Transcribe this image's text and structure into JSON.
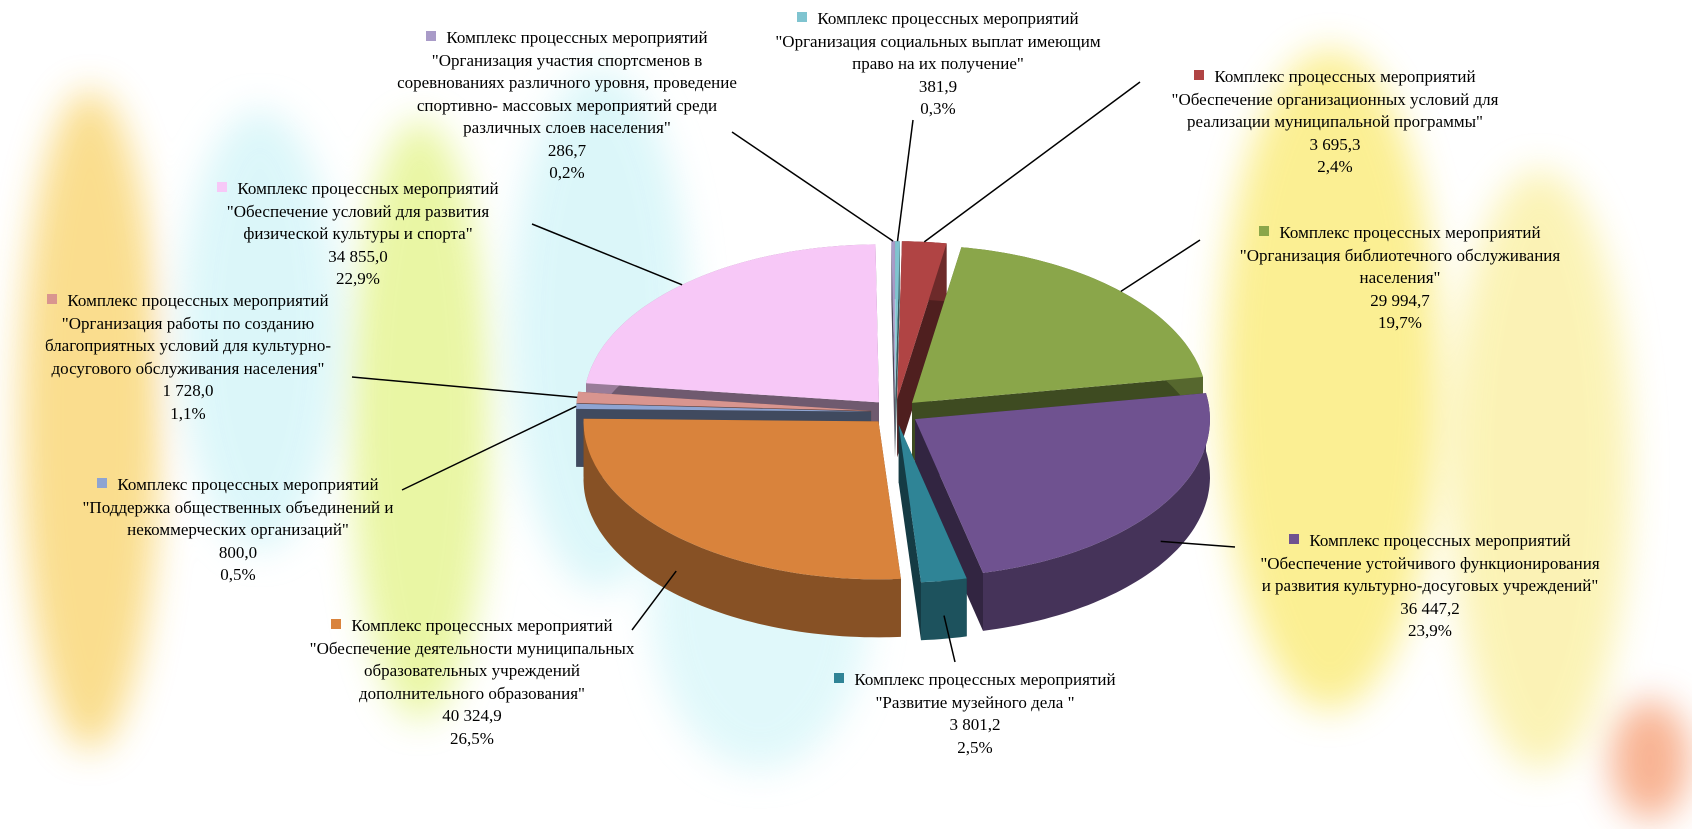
{
  "chart_data": {
    "type": "pie",
    "categories": [
      "Комплекс процессных мероприятий \"Организация социальных выплат имеющим право на их получение\"",
      "Комплекс процессных мероприятий \"Обеспечение организационных условий для реализации муниципальной программы\"",
      "Комплекс процессных мероприятий \"Организация библиотечного обслуживания населения\"",
      "Комплекс процессных мероприятий \"Обеспечение устойчивого функционирования и развития культурно-досуговых учреждений\"",
      "Комплекс процессных мероприятий \"Развитие музейного дела \"",
      "Комплекс процессных мероприятий \"Обеспечение деятельности муниципальных образовательных учреждений дополнительного образования\"",
      "Комплекс процессных мероприятий \"Поддержка общественных объединений и некоммерческих организаций\"",
      "Комплекс процессных мероприятий \"Организация работы по созданию благоприятных условий для культурно-досугового обслуживания населения\"",
      "Комплекс процессных мероприятий \"Обеспечение условий для развития физической культуры и спорта\"",
      "Комплекс процессных мероприятий \"Организация участия спортсменов в соревнованиях различного уровня, проведение спортивно- массовых мероприятий среди различных слоев населения\""
    ],
    "values": [
      381.9,
      3695.3,
      29994.7,
      36447.2,
      3801.2,
      40324.9,
      800.0,
      1728.0,
      34855.0,
      286.7
    ],
    "value_labels": [
      "381,9",
      "3 695,3",
      "29 994,7",
      "36 447,2",
      "3 801,2",
      "40 324,9",
      "800,0",
      "1 728,0",
      "34 855,0",
      "286,7"
    ],
    "shares": [
      0.3,
      2.4,
      19.7,
      23.9,
      2.5,
      26.5,
      0.5,
      1.1,
      22.9,
      0.2
    ],
    "share_labels": [
      "0,3%",
      "2,4%",
      "19,7%",
      "23,9%",
      "2,5%",
      "26,5%",
      "0,5%",
      "1,1%",
      "22,9%",
      "0,2%"
    ],
    "colors": [
      "#7fc4d0",
      "#b04444",
      "#8aa64a",
      "#6f5290",
      "#2f8496",
      "#d9833c",
      "#8ea4d2",
      "#d9958f",
      "#f7c8f7",
      "#a99bc8"
    ]
  }
}
